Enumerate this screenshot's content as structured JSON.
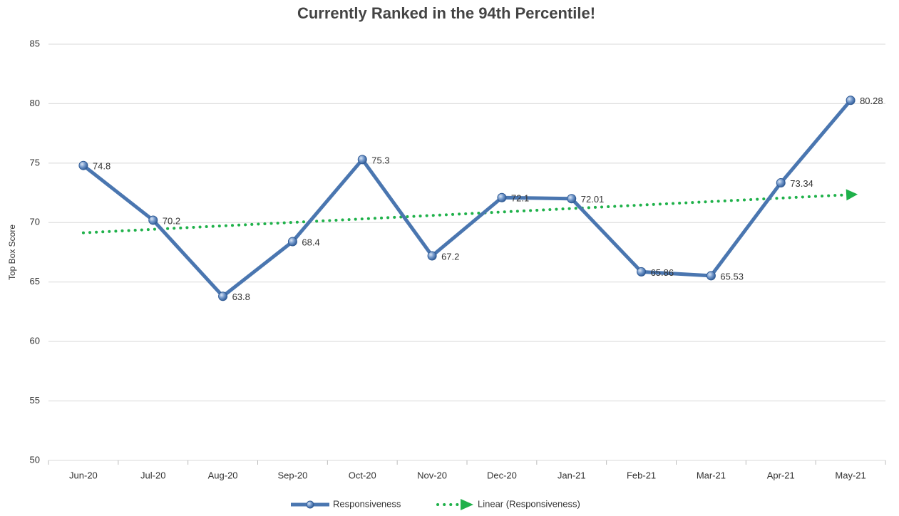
{
  "chart_data": {
    "type": "line",
    "title": "Currently Ranked in the 94th Percentile!",
    "y_label": "Top Box Score",
    "categories": [
      "Jun-20",
      "Jul-20",
      "Aug-20",
      "Sep-20",
      "Oct-20",
      "Nov-20",
      "Dec-20",
      "Jan-21",
      "Feb-21",
      "Mar-21",
      "Apr-21",
      "May-21"
    ],
    "series": [
      {
        "name": "Responsiveness",
        "color": "#4a76b0",
        "values": [
          74.8,
          70.2,
          63.8,
          68.4,
          75.3,
          67.2,
          72.1,
          72.01,
          65.86,
          65.53,
          73.34,
          80.28
        ]
      }
    ],
    "trendline": {
      "name": "Linear (Responsiveness)",
      "color": "#1fb14a",
      "kind": "linear"
    },
    "ylim": [
      50,
      85
    ],
    "yticks": [
      50,
      55,
      60,
      65,
      70,
      75,
      80,
      85
    ],
    "grid": true,
    "legend": "bottom"
  }
}
